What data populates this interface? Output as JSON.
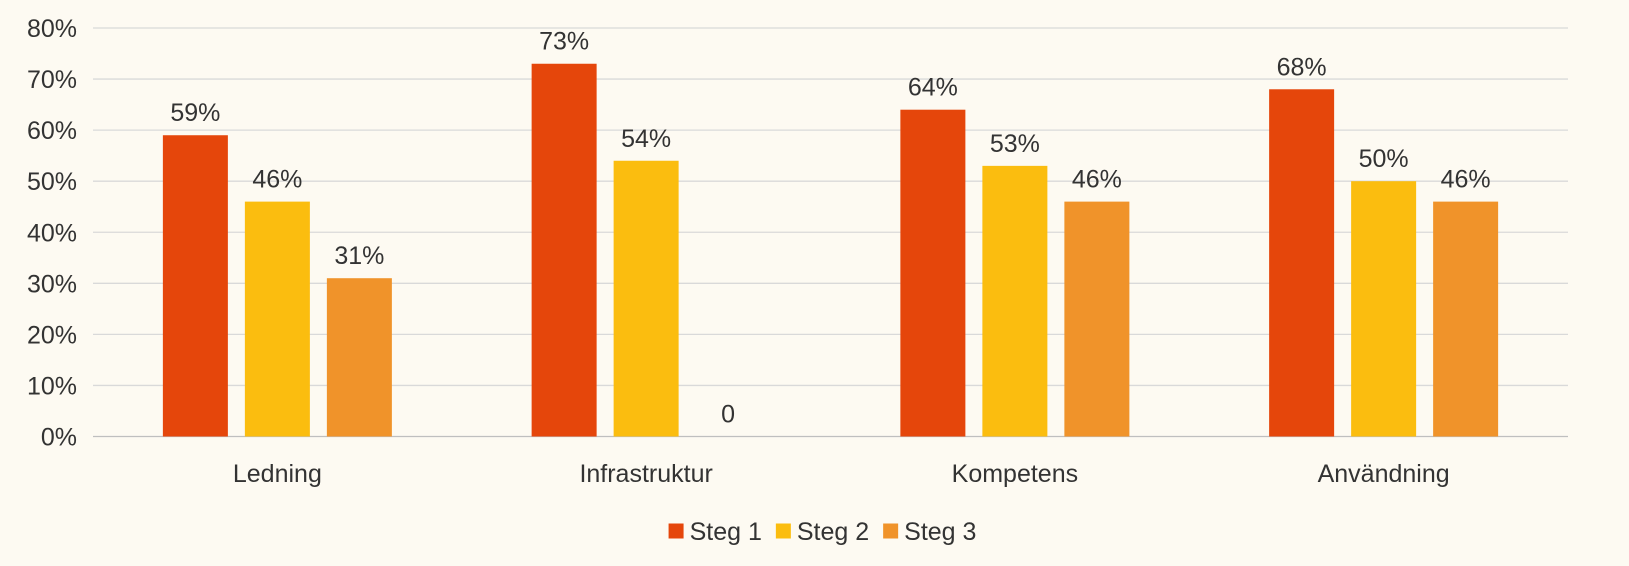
{
  "chart_data": {
    "type": "bar",
    "title": "",
    "xlabel": "",
    "ylabel": "",
    "categories": [
      "Ledning",
      "Infrastruktur",
      "Kompetens",
      "Användning"
    ],
    "series": [
      {
        "name": "Steg 1",
        "color": "#e5460b",
        "values": [
          59,
          73,
          64,
          68
        ],
        "labels": [
          "59%",
          "73%",
          "64%",
          "68%"
        ]
      },
      {
        "name": "Steg 2",
        "color": "#fbbd0f",
        "values": [
          46,
          54,
          53,
          50
        ],
        "labels": [
          "46%",
          "54%",
          "53%",
          "50%"
        ]
      },
      {
        "name": "Steg 3",
        "color": "#f0932a",
        "values": [
          31,
          0,
          46,
          46
        ],
        "labels": [
          "31%",
          "0",
          "46%",
          "46%"
        ]
      }
    ],
    "ylim": [
      0,
      80
    ],
    "yticks": [
      "0%",
      "10%",
      "20%",
      "30%",
      "40%",
      "50%",
      "60%",
      "70%",
      "80%"
    ],
    "grid": true,
    "legend_position": "bottom"
  }
}
